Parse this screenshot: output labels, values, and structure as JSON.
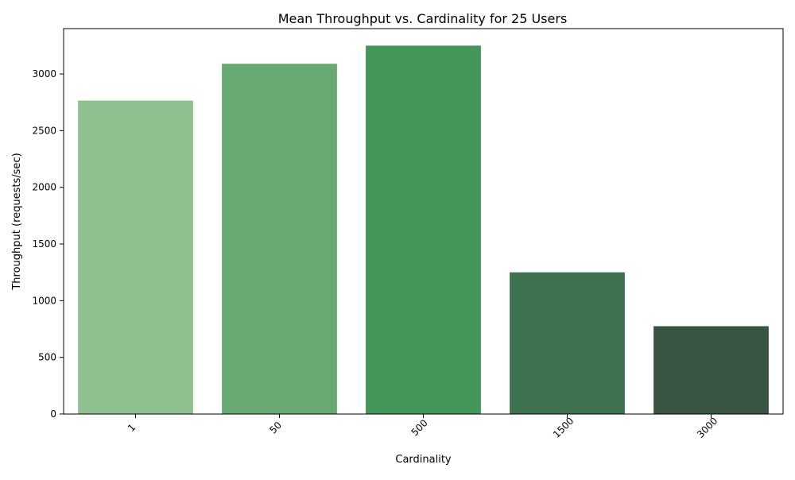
{
  "chart_data": {
    "type": "bar",
    "title": "Mean Throughput vs. Cardinality for 25 Users",
    "xlabel": "Cardinality",
    "ylabel": "Throughput (requests/sec)",
    "categories": [
      "1",
      "50",
      "500",
      "1500",
      "3000"
    ],
    "values": [
      2765,
      3090,
      3250,
      1250,
      775
    ],
    "bar_colors": [
      "#8fc08f",
      "#69a974",
      "#43955a",
      "#3d7150",
      "#3a5443"
    ],
    "ylim": [
      0,
      3400
    ],
    "yticks": [
      0,
      500,
      1000,
      1500,
      2000,
      2500,
      3000
    ],
    "grid": false,
    "legend": "none"
  }
}
